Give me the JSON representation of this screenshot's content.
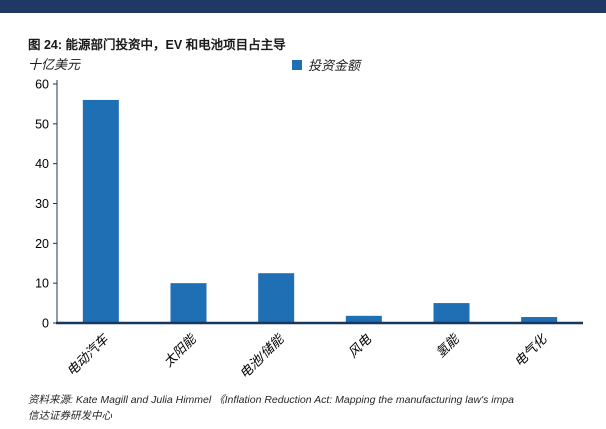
{
  "header": {
    "bar_color": "#1F3864"
  },
  "title": "图 24: 能源部门投资中，EV 和电池项目占主导",
  "chart_data": {
    "type": "bar",
    "title": "图 24: 能源部门投资中，EV 和电池项目占主导",
    "unit_label": "十亿美元",
    "legend": "投资金额",
    "categories": [
      "电动汽车",
      "太阳能",
      "电池/储能",
      "风电",
      "氢能",
      "电气化"
    ],
    "values": [
      56,
      10,
      12.5,
      1.8,
      5,
      1.5
    ],
    "ylim": [
      0,
      60
    ],
    "ytick_step": 10,
    "yticks": [
      0,
      10,
      20,
      30,
      40,
      50,
      60
    ],
    "bar_color": "#1F6FB5",
    "axis_color": "#17375E",
    "tick_text_color": "#000000",
    "grid": false,
    "legend_position": "top-center"
  },
  "source": {
    "line1": "资料来源: Kate Magill and Julia Himmel 《Inflation Reduction Act: Mapping the manufacturing law's impa",
    "line2": "信达证券研发中心"
  }
}
